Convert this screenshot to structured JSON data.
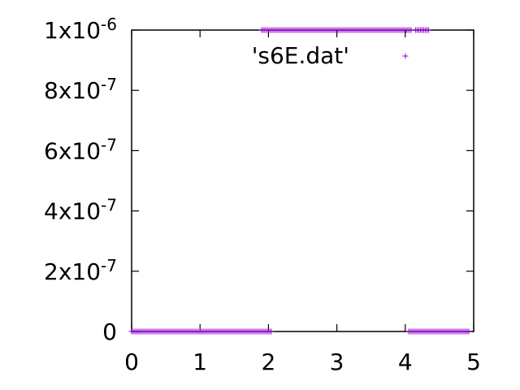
{
  "chart_data": {
    "type": "scatter",
    "title": "",
    "xlabel": "",
    "ylabel": "",
    "xlim": [
      0,
      5
    ],
    "ylim": [
      0,
      1e-06
    ],
    "grid": false,
    "legend_position": "top-right",
    "x_ticks": [
      {
        "value": 0,
        "label": "0"
      },
      {
        "value": 1,
        "label": "1"
      },
      {
        "value": 2,
        "label": "2"
      },
      {
        "value": 3,
        "label": "3"
      },
      {
        "value": 4,
        "label": "4"
      },
      {
        "value": 5,
        "label": "5"
      }
    ],
    "y_ticks": [
      {
        "value": 0,
        "mantissa": "0",
        "exponent": ""
      },
      {
        "value": 2e-07,
        "mantissa": "2x10",
        "exponent": "-7"
      },
      {
        "value": 4e-07,
        "mantissa": "4x10",
        "exponent": "-7"
      },
      {
        "value": 6e-07,
        "mantissa": "6x10",
        "exponent": "-7"
      },
      {
        "value": 8e-07,
        "mantissa": "8x10",
        "exponent": "-7"
      },
      {
        "value": 1e-06,
        "mantissa": "1x10",
        "exponent": "-6"
      }
    ],
    "series": [
      {
        "name": "'s6E.dat'",
        "color": "#9400d3",
        "marker": "plus",
        "points": [
          {
            "x_range": [
              0.0,
              2.05
            ],
            "y": 0
          },
          {
            "x_range": [
              1.9,
              4.1
            ],
            "y": 1e-06
          },
          {
            "x_range": [
              4.15,
              4.35
            ],
            "y": 1e-06
          },
          {
            "x_range": [
              4.05,
              4.95
            ],
            "y": 0
          }
        ]
      }
    ]
  }
}
